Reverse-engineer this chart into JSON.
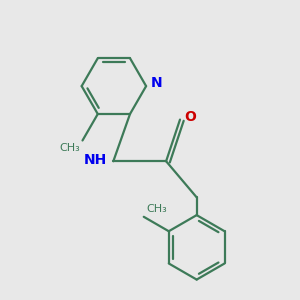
{
  "background_color": "#e8e8e8",
  "bond_color": "#3d7a58",
  "N_color": "#0000ee",
  "O_color": "#cc0000",
  "line_width": 1.6,
  "figsize": [
    3.0,
    3.0
  ],
  "dpi": 100,
  "xlim": [
    -2.5,
    2.8
  ],
  "ylim": [
    -2.8,
    2.5
  ]
}
